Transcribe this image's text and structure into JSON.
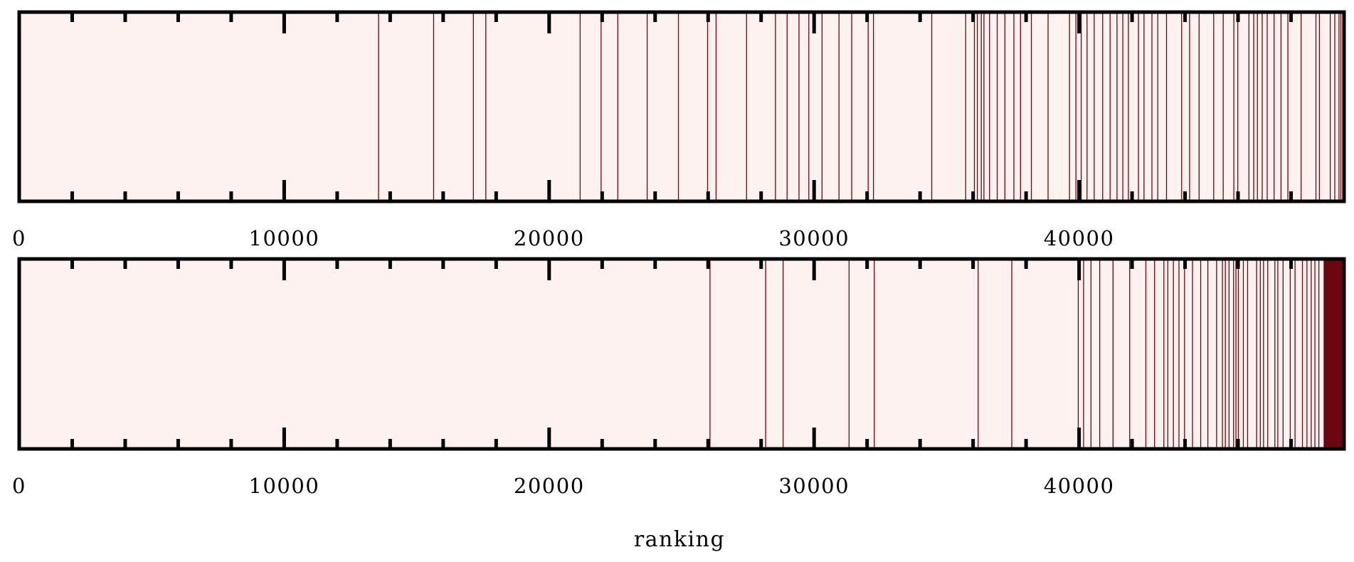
{
  "chart_data": {
    "type": "barcode",
    "xlabel": "ranking",
    "xlim": [
      0,
      50000
    ],
    "tick_labels": [
      "0",
      "10000",
      "20000",
      "30000",
      "40000"
    ],
    "major_ticks": [
      0,
      10000,
      20000,
      30000,
      40000
    ],
    "minor_ticks": [
      2000,
      4000,
      6000,
      8000,
      12000,
      14000,
      16000,
      18000,
      22000,
      24000,
      26000,
      28000,
      32000,
      34000,
      36000,
      38000,
      42000,
      44000,
      46000,
      48000
    ],
    "colors": {
      "background": "#fdf2ef",
      "mark": "#6b0713",
      "frame": "#000000"
    },
    "panels": [
      {
        "marks": [
          13560,
          15640,
          17140,
          17610,
          21170,
          21960,
          22590,
          23700,
          24880,
          25980,
          26300,
          27450,
          28540,
          28980,
          29430,
          29800,
          30300,
          30940,
          31420,
          32040,
          32240,
          34440,
          35720,
          36050,
          36160,
          36310,
          36410,
          36620,
          36910,
          37200,
          37540,
          37790,
          38200,
          38830,
          39640,
          39880,
          40080,
          40300,
          40570,
          40890,
          41170,
          41430,
          41650,
          41860,
          42240,
          42450,
          42750,
          42970,
          43300,
          43870,
          44170,
          44530,
          45080,
          45440,
          45840,
          45990,
          46410,
          46590,
          46730,
          46910,
          47100,
          47360,
          47620,
          47880,
          48380,
          48940,
          49070,
          49480,
          49650,
          49810,
          49880,
          49950
        ],
        "solid_from": null
      },
      {
        "marks": [
          26070,
          28170,
          28830,
          31320,
          32270,
          36190,
          37460,
          39970,
          40170,
          40450,
          40780,
          41280,
          41910,
          42520,
          42850,
          43200,
          43350,
          43560,
          43770,
          43980,
          44280,
          44590,
          44860,
          45190,
          45410,
          45520,
          45660,
          45830,
          45920,
          46010,
          46200,
          46360,
          46700,
          46840,
          46960,
          47120,
          47390,
          47500,
          47700,
          47970,
          48150,
          48430,
          48600,
          48760,
          48900,
          49050
        ],
        "solid_from": 49230
      }
    ]
  }
}
